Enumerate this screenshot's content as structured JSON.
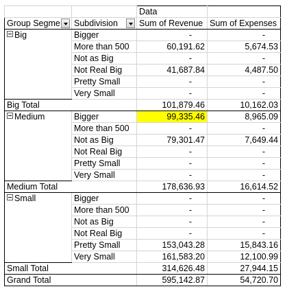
{
  "header": {
    "data_label": "Data",
    "row_fields": [
      "Group Segme",
      "Subdivision"
    ],
    "value_fields": [
      "Sum of Revenue",
      "Sum of Expenses"
    ]
  },
  "groups": [
    {
      "name": "Big",
      "rows": [
        [
          "Bigger",
          "-",
          "-"
        ],
        [
          "More than 500",
          "60,191.62",
          "5,674.53"
        ],
        [
          "Not as Big",
          "-",
          "-"
        ],
        [
          "Not Real Big",
          "41,687.84",
          "4,487.50"
        ],
        [
          "Pretty Small",
          "-",
          "-"
        ],
        [
          "Very Small",
          "-",
          "-"
        ]
      ],
      "total": [
        "Big Total",
        "101,879.46",
        "10,162.03"
      ]
    },
    {
      "name": "Medium",
      "rows": [
        [
          "Bigger",
          "99,335.46",
          "8,965.09"
        ],
        [
          "More than 500",
          "-",
          "-"
        ],
        [
          "Not as Big",
          "79,301.47",
          "7,649.44"
        ],
        [
          "Not Real Big",
          "-",
          "-"
        ],
        [
          "Pretty Small",
          "-",
          "-"
        ],
        [
          "Very Small",
          "-",
          "-"
        ]
      ],
      "total": [
        "Medium Total",
        "178,636.93",
        "16,614.52"
      ]
    },
    {
      "name": "Small",
      "rows": [
        [
          "Bigger",
          "-",
          "-"
        ],
        [
          "More than 500",
          "-",
          "-"
        ],
        [
          "Not as Big",
          "-",
          "-"
        ],
        [
          "Not Real Big",
          "-",
          "-"
        ],
        [
          "Pretty Small",
          "153,043.28",
          "15,843.16"
        ],
        [
          "Very Small",
          "161,583.20",
          "12,100.99"
        ]
      ],
      "total": [
        "Small Total",
        "314,626.48",
        "27,944.15"
      ]
    }
  ],
  "grand_total": [
    "Grand Total",
    "595,142.87",
    "54,720.70"
  ],
  "highlight": {
    "group": 1,
    "row": 0,
    "column": 1,
    "color": "#ffff00"
  }
}
